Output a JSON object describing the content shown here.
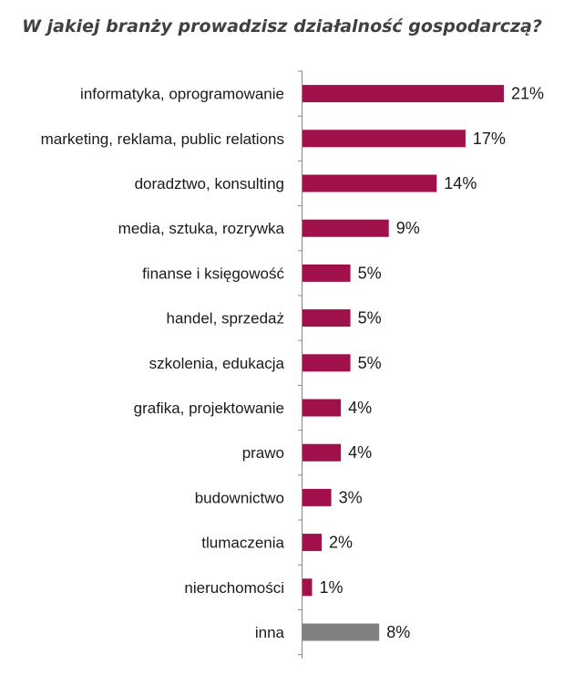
{
  "chart_data": {
    "type": "bar",
    "orientation": "horizontal",
    "title": "W jakiej branży prowadzisz działalność gospodarczą?",
    "xlabel": "",
    "ylabel": "",
    "grid": false,
    "legend": "none",
    "value_suffix": "%",
    "xlim": [
      0,
      21
    ],
    "categories": [
      "informatyka, oprogramowanie",
      "marketing, reklama, public relations",
      "doradztwo, konsulting",
      "media, sztuka, rozrywka",
      "finanse i księgowość",
      "handel, sprzedaż",
      "szkolenia, edukacja",
      "grafika, projektowanie",
      "prawo",
      "budownictwo",
      "tlumaczenia",
      "nieruchomości",
      "inna"
    ],
    "values": [
      21,
      17,
      14,
      9,
      5,
      5,
      5,
      4,
      4,
      3,
      2,
      1,
      8
    ],
    "bar_colors": [
      "#a0104a",
      "#a0104a",
      "#a0104a",
      "#a0104a",
      "#a0104a",
      "#a0104a",
      "#a0104a",
      "#a0104a",
      "#a0104a",
      "#a0104a",
      "#a0104a",
      "#a0104a",
      "#808080"
    ]
  }
}
